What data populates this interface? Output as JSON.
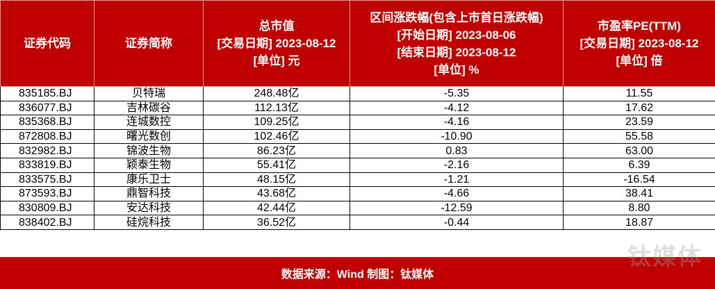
{
  "table": {
    "header": [
      [
        "证券代码"
      ],
      [
        "证券简称"
      ],
      [
        "总市值",
        "[交易日期] 2023-08-12",
        "[单位] 元"
      ],
      [
        "区间涨跌幅(包含上市首日涨跌幅)",
        "[开始日期] 2023-08-06",
        "[结束日期] 2023-08-12",
        "[单位] %"
      ],
      [
        "市盈率PE(TTM)",
        "[交易日期] 2023-08-12",
        "[单位] 倍"
      ]
    ],
    "rows": [
      [
        "835185.BJ",
        "贝特瑞",
        "248.48亿",
        "-5.35",
        "11.55"
      ],
      [
        "836077.BJ",
        "吉林碳谷",
        "112.13亿",
        "-4.12",
        "17.62"
      ],
      [
        "835368.BJ",
        "连城数控",
        "109.25亿",
        "-4.16",
        "23.59"
      ],
      [
        "872808.BJ",
        "曙光数创",
        "102.46亿",
        "-10.90",
        "55.58"
      ],
      [
        "832982.BJ",
        "锦波生物",
        "86.23亿",
        "0.83",
        "63.00"
      ],
      [
        "833819.BJ",
        "颖泰生物",
        "55.41亿",
        "-2.16",
        "6.39"
      ],
      [
        "833575.BJ",
        "康乐卫士",
        "48.15亿",
        "-1.21",
        "-16.54"
      ],
      [
        "873593.BJ",
        "鼎智科技",
        "43.68亿",
        "-4.66",
        "38.41"
      ],
      [
        "830809.BJ",
        "安达科技",
        "42.44亿",
        "-12.59",
        "8.80"
      ],
      [
        "838402.BJ",
        "硅烷科技",
        "36.52亿",
        "-0.44",
        "18.87"
      ]
    ]
  },
  "footer": "数据来源：Wind 制图：钛媒体",
  "watermark": "钛媒体"
}
